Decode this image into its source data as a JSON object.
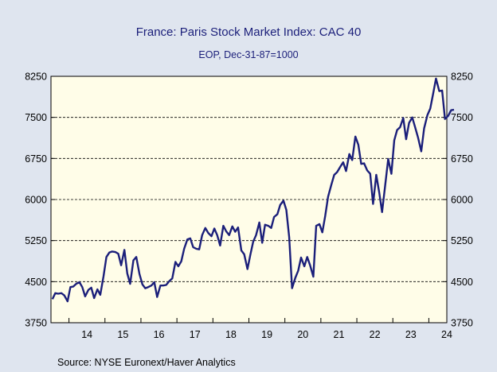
{
  "chart_data": {
    "type": "line",
    "title": "France: Paris Stock Market Index: CAC 40",
    "subtitle": "EOP, Dec-31-87=1000",
    "source": "Source:  NYSE Euronext/Haver Analytics",
    "x_tick_labels": [
      "14",
      "15",
      "16",
      "17",
      "18",
      "19",
      "20",
      "21",
      "22",
      "23",
      "24"
    ],
    "y_ticks": [
      3750,
      4500,
      5250,
      6000,
      6750,
      7500,
      8250
    ],
    "ylim": [
      3750,
      8250
    ],
    "xlim": [
      2013.5,
      2024.5
    ],
    "grid": "horizontal dashed",
    "series": [
      {
        "color": "#1b1f7a",
        "points": [
          [
            2013.54,
            4180
          ],
          [
            2013.62,
            4290
          ],
          [
            2013.7,
            4280
          ],
          [
            2013.79,
            4290
          ],
          [
            2013.87,
            4250
          ],
          [
            2013.96,
            4140
          ],
          [
            2014.04,
            4400
          ],
          [
            2014.12,
            4410
          ],
          [
            2014.2,
            4460
          ],
          [
            2014.29,
            4490
          ],
          [
            2014.37,
            4400
          ],
          [
            2014.45,
            4230
          ],
          [
            2014.54,
            4350
          ],
          [
            2014.62,
            4390
          ],
          [
            2014.7,
            4200
          ],
          [
            2014.79,
            4360
          ],
          [
            2014.87,
            4260
          ],
          [
            2014.96,
            4600
          ],
          [
            2015.04,
            4950
          ],
          [
            2015.12,
            5030
          ],
          [
            2015.2,
            5050
          ],
          [
            2015.29,
            5040
          ],
          [
            2015.37,
            5010
          ],
          [
            2015.45,
            4800
          ],
          [
            2015.54,
            5080
          ],
          [
            2015.62,
            4650
          ],
          [
            2015.7,
            4460
          ],
          [
            2015.79,
            4890
          ],
          [
            2015.87,
            4950
          ],
          [
            2015.96,
            4640
          ],
          [
            2016.04,
            4450
          ],
          [
            2016.12,
            4380
          ],
          [
            2016.2,
            4400
          ],
          [
            2016.29,
            4430
          ],
          [
            2016.37,
            4490
          ],
          [
            2016.45,
            4220
          ],
          [
            2016.54,
            4430
          ],
          [
            2016.62,
            4430
          ],
          [
            2016.7,
            4440
          ],
          [
            2016.79,
            4510
          ],
          [
            2016.87,
            4560
          ],
          [
            2016.96,
            4860
          ],
          [
            2017.04,
            4780
          ],
          [
            2017.12,
            4870
          ],
          [
            2017.2,
            5100
          ],
          [
            2017.29,
            5270
          ],
          [
            2017.37,
            5290
          ],
          [
            2017.45,
            5130
          ],
          [
            2017.54,
            5100
          ],
          [
            2017.62,
            5090
          ],
          [
            2017.7,
            5350
          ],
          [
            2017.79,
            5480
          ],
          [
            2017.87,
            5390
          ],
          [
            2017.96,
            5330
          ],
          [
            2018.04,
            5470
          ],
          [
            2018.12,
            5350
          ],
          [
            2018.2,
            5160
          ],
          [
            2018.29,
            5520
          ],
          [
            2018.37,
            5420
          ],
          [
            2018.45,
            5350
          ],
          [
            2018.54,
            5510
          ],
          [
            2018.62,
            5410
          ],
          [
            2018.7,
            5490
          ],
          [
            2018.79,
            5070
          ],
          [
            2018.87,
            5000
          ],
          [
            2018.96,
            4730
          ],
          [
            2019.04,
            4990
          ],
          [
            2019.12,
            5230
          ],
          [
            2019.2,
            5350
          ],
          [
            2019.29,
            5580
          ],
          [
            2019.37,
            5210
          ],
          [
            2019.45,
            5540
          ],
          [
            2019.54,
            5520
          ],
          [
            2019.62,
            5480
          ],
          [
            2019.7,
            5680
          ],
          [
            2019.79,
            5730
          ],
          [
            2019.87,
            5900
          ],
          [
            2019.96,
            5980
          ],
          [
            2020.04,
            5810
          ],
          [
            2020.12,
            5310
          ],
          [
            2020.2,
            4380
          ],
          [
            2020.29,
            4570
          ],
          [
            2020.37,
            4700
          ],
          [
            2020.45,
            4940
          ],
          [
            2020.54,
            4780
          ],
          [
            2020.62,
            4950
          ],
          [
            2020.7,
            4800
          ],
          [
            2020.79,
            4590
          ],
          [
            2020.87,
            5520
          ],
          [
            2020.96,
            5550
          ],
          [
            2021.04,
            5400
          ],
          [
            2021.12,
            5700
          ],
          [
            2021.2,
            6050
          ],
          [
            2021.29,
            6270
          ],
          [
            2021.37,
            6450
          ],
          [
            2021.45,
            6500
          ],
          [
            2021.54,
            6600
          ],
          [
            2021.62,
            6680
          ],
          [
            2021.7,
            6520
          ],
          [
            2021.79,
            6830
          ],
          [
            2021.87,
            6720
          ],
          [
            2021.96,
            7150
          ],
          [
            2022.04,
            7000
          ],
          [
            2022.12,
            6650
          ],
          [
            2022.2,
            6660
          ],
          [
            2022.29,
            6530
          ],
          [
            2022.37,
            6470
          ],
          [
            2022.45,
            5920
          ],
          [
            2022.54,
            6450
          ],
          [
            2022.62,
            6130
          ],
          [
            2022.7,
            5770
          ],
          [
            2022.79,
            6270
          ],
          [
            2022.87,
            6740
          ],
          [
            2022.96,
            6470
          ],
          [
            2023.04,
            7080
          ],
          [
            2023.12,
            7270
          ],
          [
            2023.2,
            7320
          ],
          [
            2023.29,
            7490
          ],
          [
            2023.37,
            7100
          ],
          [
            2023.45,
            7400
          ],
          [
            2023.54,
            7500
          ],
          [
            2023.62,
            7320
          ],
          [
            2023.7,
            7130
          ],
          [
            2023.79,
            6880
          ],
          [
            2023.87,
            7300
          ],
          [
            2023.96,
            7540
          ],
          [
            2024.04,
            7660
          ],
          [
            2024.12,
            7930
          ],
          [
            2024.2,
            8210
          ],
          [
            2024.29,
            7980
          ],
          [
            2024.37,
            7990
          ],
          [
            2024.45,
            7470
          ],
          [
            2024.54,
            7530
          ],
          [
            2024.62,
            7630
          ],
          [
            2024.7,
            7640
          ]
        ]
      }
    ]
  }
}
